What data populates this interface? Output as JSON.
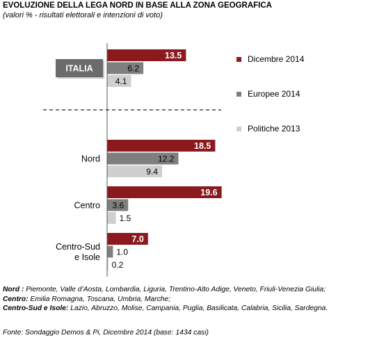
{
  "title": "EVOLUZIONE DELLA LEGA NORD IN BASE ALLA ZONA GEOGRAFICA",
  "subtitle": "(valori % - risultati elettorali e intenzioni di voto)",
  "notes": [
    {
      "label": "Nord :",
      "text": " Piemonte, Valle d’Aosta, Lombardia, Liguria, Trentino-Alto Adige, Veneto, Friuli-Venezia Giulia;"
    },
    {
      "label": "Centro:",
      "text": " Emilia Romagna, Toscana, Umbria, Marche;"
    },
    {
      "label": "Centro-Sud e Isole:",
      "text": " Lazio, Abruzzo, Molise, Campania, Puglia, Basilicata, Calabria, Sicilia, Sardegna."
    }
  ],
  "source": "Fonte: Sondaggio Demos & Pi, Dicembre 2014 (base: 1434 casi)",
  "colors": {
    "dicembre": "#8b1a1f",
    "europee": "#7f7f7f",
    "politiche": "#cfcfcf",
    "italia_box": "#6b6b6b",
    "italia_text": "#ffffff"
  },
  "chart_data": {
    "type": "bar",
    "orientation": "horizontal",
    "categories": [
      "ITALIA",
      "Nord",
      "Centro",
      "Centro-Sud e Isole"
    ],
    "category_lines": [
      [
        "ITALIA"
      ],
      [
        "Nord"
      ],
      [
        "Centro"
      ],
      [
        "Centro-Sud",
        "e Isole"
      ]
    ],
    "series": [
      {
        "name": "Dicembre 2014",
        "values": [
          13.5,
          18.5,
          19.6,
          7.0
        ],
        "labels": [
          "13.5",
          "18.5",
          "19.6",
          "7.0"
        ]
      },
      {
        "name": "Europee 2014",
        "values": [
          6.2,
          12.2,
          3.6,
          1.0
        ],
        "labels": [
          "6.2",
          "12.2",
          "3.6",
          "1.0"
        ]
      },
      {
        "name": "Politiche 2013",
        "values": [
          4.1,
          9.4,
          1.5,
          0.2
        ],
        "labels": [
          "4.1",
          "9.4",
          "1.5",
          "0.2"
        ]
      }
    ],
    "xlim": [
      0,
      25
    ],
    "separator_after": "ITALIA",
    "legend_position": "right",
    "grid": false
  }
}
